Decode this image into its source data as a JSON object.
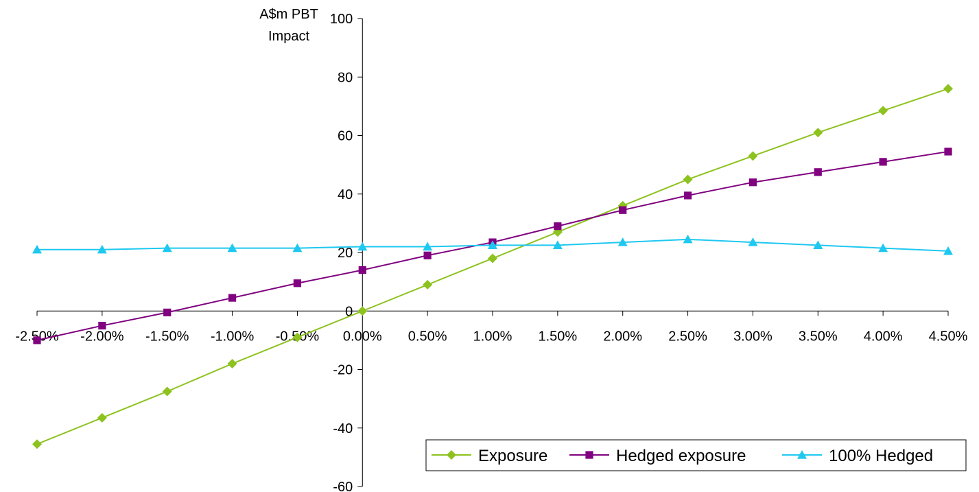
{
  "chart_data": {
    "type": "line",
    "ylabel_lines": [
      "A$m PBT",
      "Impact"
    ],
    "xlabel": "",
    "x": [
      "-2.50%",
      "-2.00%",
      "-1.50%",
      "-1.00%",
      "-0.50%",
      "0.00%",
      "0.50%",
      "1.00%",
      "1.50%",
      "2.00%",
      "2.50%",
      "3.00%",
      "3.50%",
      "4.00%",
      "4.50%"
    ],
    "x_values": [
      -2.5,
      -2.0,
      -1.5,
      -1.0,
      -0.5,
      0.0,
      0.5,
      1.0,
      1.5,
      2.0,
      2.5,
      3.0,
      3.5,
      4.0,
      4.5
    ],
    "ylim": [
      -60,
      100
    ],
    "yticks": [
      -60,
      -40,
      -20,
      0,
      20,
      40,
      60,
      80,
      100
    ],
    "grid": false,
    "legend_position": "bottom-right",
    "series": [
      {
        "name": "Exposure",
        "color": "#8DC21F",
        "marker": "diamond",
        "values": [
          -45.5,
          -36.5,
          -27.5,
          -18.0,
          -9.0,
          0.0,
          9.0,
          18.0,
          27.0,
          36.0,
          45.0,
          53.0,
          61.0,
          68.5,
          76.0
        ]
      },
      {
        "name": "Hedged exposure",
        "color": "#800080",
        "marker": "square",
        "values": [
          -10.0,
          -5.0,
          -0.5,
          4.5,
          9.5,
          14.0,
          19.0,
          23.5,
          29.0,
          34.5,
          39.5,
          44.0,
          47.5,
          51.0,
          54.5
        ]
      },
      {
        "name": "100% Hedged",
        "color": "#1EC8F0",
        "marker": "triangle",
        "values": [
          21.0,
          21.0,
          21.5,
          21.5,
          21.5,
          22.0,
          22.0,
          22.5,
          22.5,
          23.5,
          24.5,
          23.5,
          22.5,
          21.5,
          20.5
        ]
      }
    ]
  }
}
